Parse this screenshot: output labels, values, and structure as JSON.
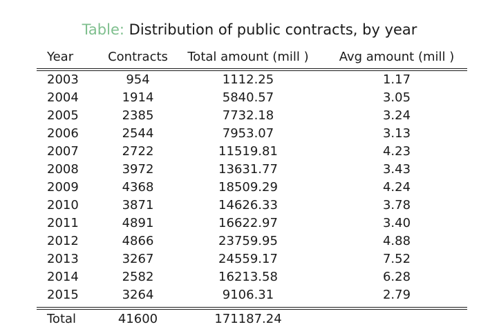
{
  "chart_data": {
    "type": "table",
    "caption_label": "Table:",
    "title": "Distribution of public contracts, by year",
    "columns": [
      "Year",
      "Contracts",
      "Total amount (mill )",
      "Avg amount (mill )"
    ],
    "rows": [
      [
        "2003",
        "954",
        "1112.25",
        "1.17"
      ],
      [
        "2004",
        "1914",
        "5840.57",
        "3.05"
      ],
      [
        "2005",
        "2385",
        "7732.18",
        "3.24"
      ],
      [
        "2006",
        "2544",
        "7953.07",
        "3.13"
      ],
      [
        "2007",
        "2722",
        "11519.81",
        "4.23"
      ],
      [
        "2008",
        "3972",
        "13631.77",
        "3.43"
      ],
      [
        "2009",
        "4368",
        "18509.29",
        "4.24"
      ],
      [
        "2010",
        "3871",
        "14626.33",
        "3.78"
      ],
      [
        "2011",
        "4891",
        "16622.97",
        "3.40"
      ],
      [
        "2012",
        "4866",
        "23759.95",
        "4.88"
      ],
      [
        "2013",
        "3267",
        "24559.17",
        "7.52"
      ],
      [
        "2014",
        "2582",
        "16213.58",
        "6.28"
      ],
      [
        "2015",
        "3264",
        "9106.31",
        "2.79"
      ]
    ],
    "total_row": [
      "Total",
      "41600",
      "171187.24",
      ""
    ],
    "colors": {
      "caption_label": "#7fbf8e",
      "text": "#1a1a1a"
    }
  }
}
